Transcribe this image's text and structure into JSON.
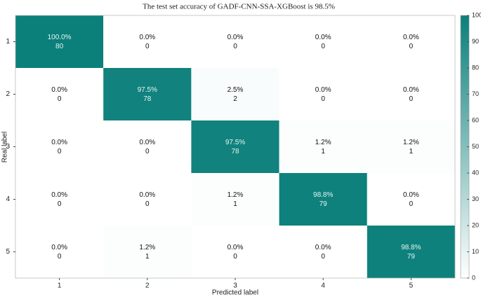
{
  "chart_data": {
    "type": "heatmap",
    "title": "The test set accuracy of GADF-CNN-SSA-XGBoost is 98.5%",
    "x_label": "Predicted label",
    "y_label": "Real label",
    "x_categories": [
      "1",
      "2",
      "3",
      "4",
      "5"
    ],
    "y_categories": [
      "1",
      "2",
      "3",
      "4",
      "5"
    ],
    "values": [
      [
        100.0,
        0.0,
        0.0,
        0.0,
        0.0
      ],
      [
        0.0,
        97.5,
        2.5,
        0.0,
        0.0
      ],
      [
        0.0,
        0.0,
        97.5,
        1.2,
        1.2
      ],
      [
        0.0,
        0.0,
        1.2,
        98.8,
        0.0
      ],
      [
        0.0,
        1.2,
        0.0,
        0.0,
        98.8
      ]
    ],
    "value_labels": [
      [
        "100.0%",
        "0.0%",
        "0.0%",
        "0.0%",
        "0.0%"
      ],
      [
        "0.0%",
        "97.5%",
        "2.5%",
        "0.0%",
        "0.0%"
      ],
      [
        "0.0%",
        "0.0%",
        "97.5%",
        "1.2%",
        "1.2%"
      ],
      [
        "0.0%",
        "0.0%",
        "1.2%",
        "98.8%",
        "0.0%"
      ],
      [
        "0.0%",
        "1.2%",
        "0.0%",
        "0.0%",
        "98.8%"
      ]
    ],
    "counts": [
      [
        80,
        0,
        0,
        0,
        0
      ],
      [
        0,
        78,
        2,
        0,
        0
      ],
      [
        0,
        0,
        78,
        1,
        1
      ],
      [
        0,
        0,
        1,
        79,
        0
      ],
      [
        0,
        1,
        0,
        0,
        79
      ]
    ],
    "colormap": [
      "#ffffff",
      "#0b7f7a"
    ],
    "clim": [
      0,
      100
    ],
    "cticks": [
      0,
      10,
      20,
      30,
      40,
      50,
      60,
      70,
      80,
      90,
      100
    ]
  }
}
